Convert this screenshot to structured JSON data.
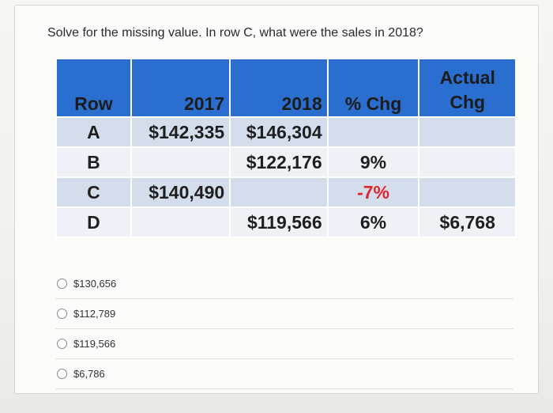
{
  "question": "Solve for the missing value. In row C, what were the sales in 2018?",
  "table": {
    "headers": {
      "row": "Row",
      "y2017": "2017",
      "y2018": "2018",
      "pct": "% Chg",
      "actual_line1": "Actual",
      "actual_line2": "Chg"
    },
    "rows": [
      {
        "row": "A",
        "y2017": "$142,335",
        "y2018": "$146,304",
        "pct": "",
        "actual": ""
      },
      {
        "row": "B",
        "y2017": "",
        "y2018": "$122,176",
        "pct": "9%",
        "actual": ""
      },
      {
        "row": "C",
        "y2017": "$140,490",
        "y2018": "",
        "pct": "-7%",
        "actual": ""
      },
      {
        "row": "D",
        "y2017": "",
        "y2018": "$119,566",
        "pct": "6%",
        "actual": "$6,768"
      }
    ],
    "colors": {
      "header": "#2a6fd0",
      "alt_row": "#d3ddec",
      "plain_row": "#eef2f7",
      "negative": "#e0262a"
    }
  },
  "options": [
    {
      "label": "$130,656"
    },
    {
      "label": "$112,789"
    },
    {
      "label": "$119,566"
    },
    {
      "label": "$6,786"
    }
  ]
}
